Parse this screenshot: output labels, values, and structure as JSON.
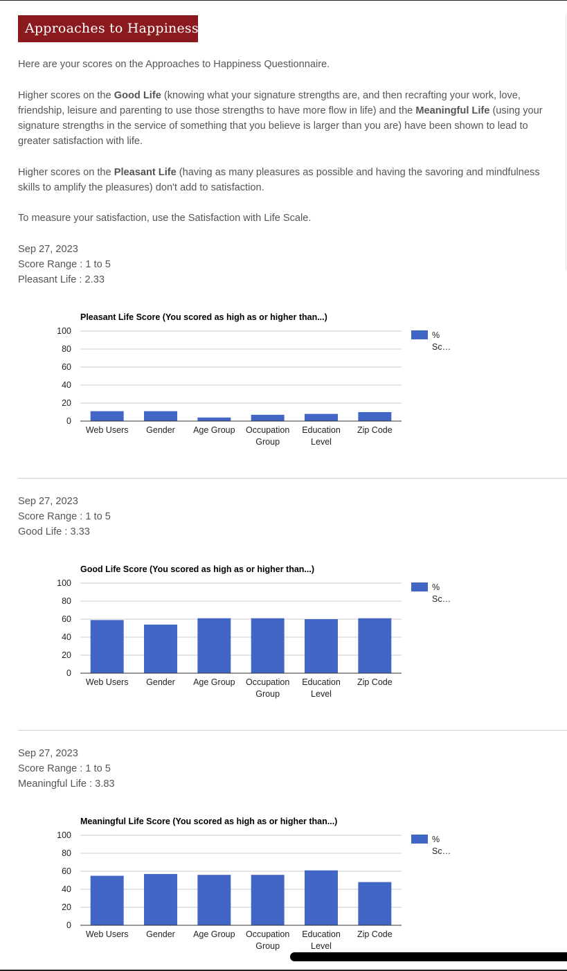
{
  "banner": {
    "title": "Approaches to Happiness"
  },
  "intro": {
    "p1": "Here are your scores on the Approaches to Happiness Questionnaire.",
    "p2": {
      "t1": "Higher scores on the ",
      "b1": "Good Life",
      "t2": " (knowing what your signature strengths are, and then recrafting your work, love, friendship, leisure and parenting to use those strengths to have more flow in life) and the ",
      "b2": "Meaningful Life",
      "t3": " (using your signature strengths in the service of something that you believe is larger than you are) have been shown to lead to greater satisfaction with life."
    },
    "p3": {
      "t1": "Higher scores on the ",
      "b1": "Pleasant Life",
      "t2": " (having as many pleasures as possible and having the savoring and mindfulness skills to amplify the pleasures) don't add to satisfaction."
    },
    "p4": "To measure your satisfaction, use the Satisfaction with Life Scale."
  },
  "results": [
    {
      "date": "Sep 27, 2023",
      "range": "Score Range : 1 to 5",
      "score": "Pleasant Life : 2.33"
    },
    {
      "date": "Sep 27, 2023",
      "range": "Score Range : 1 to 5",
      "score": "Good Life : 3.33"
    },
    {
      "date": "Sep 27, 2023",
      "range": "Score Range : 1 to 5",
      "score": "Meaningful Life : 3.83"
    }
  ],
  "chart_data": [
    {
      "type": "bar",
      "title": "Pleasant Life Score (You scored as high as or higher than...)",
      "categories": [
        [
          "Web Users"
        ],
        [
          "Gender"
        ],
        [
          "Age Group"
        ],
        [
          "Occupation",
          "Group"
        ],
        [
          "Education",
          "Level"
        ],
        [
          "Zip Code"
        ]
      ],
      "series": [
        {
          "name": "% Sc…",
          "values": [
            11,
            11,
            4,
            7,
            8,
            10
          ]
        }
      ],
      "yticks": [
        "0",
        "20",
        "40",
        "60",
        "80",
        "100"
      ],
      "ylim": [
        0,
        100
      ],
      "legend_lines": [
        "%",
        "Sc…"
      ],
      "legend_position": "right",
      "grid": true,
      "bar_color": "#4166c6"
    },
    {
      "type": "bar",
      "title": "Good Life Score (You scored as high as or higher than...)",
      "categories": [
        [
          "Web Users"
        ],
        [
          "Gender"
        ],
        [
          "Age Group"
        ],
        [
          "Occupation",
          "Group"
        ],
        [
          "Education",
          "Level"
        ],
        [
          "Zip Code"
        ]
      ],
      "series": [
        {
          "name": "% Sc…",
          "values": [
            59,
            54,
            61,
            61,
            60,
            61
          ]
        }
      ],
      "yticks": [
        "0",
        "20",
        "40",
        "60",
        "80",
        "100"
      ],
      "ylim": [
        0,
        100
      ],
      "legend_lines": [
        "%",
        "Sc…"
      ],
      "legend_position": "right",
      "grid": true,
      "bar_color": "#4166c6"
    },
    {
      "type": "bar",
      "title": "Meaningful Life Score (You scored as high as or higher than...)",
      "categories": [
        [
          "Web Users"
        ],
        [
          "Gender"
        ],
        [
          "Age Group"
        ],
        [
          "Occupation",
          "Group"
        ],
        [
          "Education",
          "Level"
        ],
        [
          "Zip Code"
        ]
      ],
      "series": [
        {
          "name": "% Sc…",
          "values": [
            55,
            57,
            56,
            56,
            61,
            48
          ]
        }
      ],
      "yticks": [
        "0",
        "20",
        "40",
        "60",
        "80",
        "100"
      ],
      "ylim": [
        0,
        100
      ],
      "legend_lines": [
        "%",
        "Sc…"
      ],
      "legend_position": "right",
      "grid": true,
      "bar_color": "#4166c6"
    }
  ]
}
